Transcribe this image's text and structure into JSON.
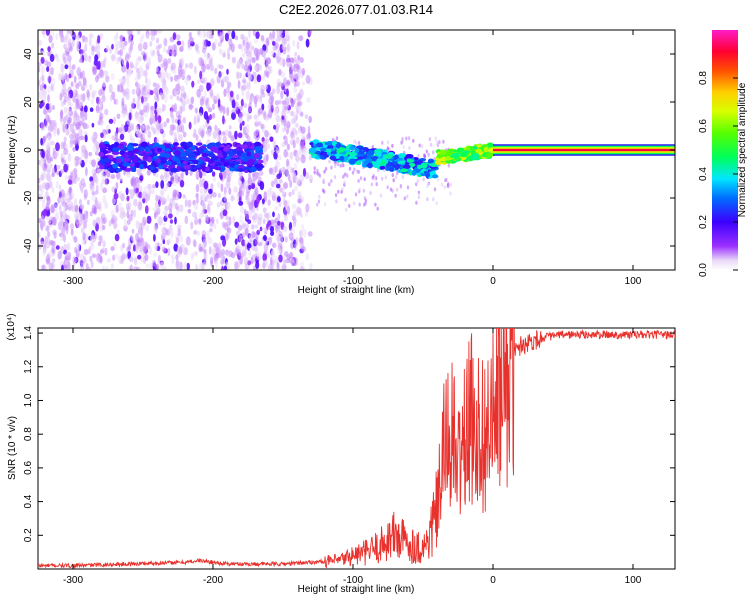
{
  "page": {
    "title": "C2E2.2026.077.01.03.R14"
  },
  "colors": {
    "snr_line": "#e8312c",
    "axis": "#000000",
    "background": "#ffffff"
  },
  "chart_data": [
    {
      "type": "heatmap",
      "title": "C2E2.2026.077.01.03.R14",
      "xlabel": "Height of straight line (km)",
      "ylabel": "Frequency (Hz)",
      "xlim": [
        -325,
        130
      ],
      "ylim": [
        -50,
        50
      ],
      "x_ticks": [
        -300,
        -200,
        -100,
        0,
        100
      ],
      "y_ticks": [
        -40,
        -20,
        0,
        20,
        40
      ],
      "colorbar": {
        "label": "Normalized spectral amplitude",
        "range": [
          0,
          1
        ],
        "ticks": [
          0.0,
          0.2,
          0.4,
          0.6,
          0.8
        ]
      },
      "features": [
        {
          "name": "scatter noise",
          "x_range": [
            -325,
            -130
          ],
          "freq_range": [
            -50,
            50
          ],
          "amplitude": 0.12
        },
        {
          "name": "weak carrier",
          "x_range": [
            -280,
            -165
          ],
          "freq_center": -3,
          "amplitude": 0.3
        },
        {
          "name": "drifting carrier",
          "x_range": [
            -130,
            -40
          ],
          "freq_center": [
            1,
            -8
          ],
          "amplitude": 0.45
        },
        {
          "name": "locking carrier",
          "x_range": [
            -40,
            0
          ],
          "freq_center": [
            -3,
            0
          ],
          "amplitude": 0.7
        },
        {
          "name": "steady carrier",
          "x_range": [
            0,
            130
          ],
          "freq_center": 0,
          "amplitude": 1.0
        }
      ]
    },
    {
      "type": "line",
      "xlabel": "Height of straight line (km)",
      "ylabel": "SNR (10 * v/v)",
      "y_multiplier": "(x10⁴)",
      "xlim": [
        -325,
        130
      ],
      "ylim": [
        0,
        1.43
      ],
      "x_ticks": [
        -300,
        -200,
        -100,
        0,
        100
      ],
      "y_ticks": [
        0.2,
        0.4,
        0.6,
        0.8,
        1.0,
        1.2,
        1.4
      ],
      "series": [
        {
          "name": "SNR",
          "x": [
            -325,
            -300,
            -260,
            -220,
            -210,
            -190,
            -150,
            -130,
            -110,
            -100,
            -90,
            -80,
            -75,
            -70,
            -60,
            -50,
            -45,
            -40,
            -35,
            -30,
            -25,
            -20,
            -15,
            -10,
            -5,
            0,
            5,
            10,
            15,
            20,
            30,
            40,
            50,
            60,
            80,
            100,
            130
          ],
          "y": [
            0.02,
            0.02,
            0.03,
            0.04,
            0.05,
            0.03,
            0.03,
            0.04,
            0.05,
            0.08,
            0.1,
            0.14,
            0.18,
            0.2,
            0.15,
            0.12,
            0.2,
            0.35,
            0.7,
            0.82,
            0.62,
            0.78,
            0.9,
            0.82,
            0.8,
            0.9,
            1.02,
            1.18,
            1.28,
            1.33,
            1.36,
            1.38,
            1.39,
            1.39,
            1.39,
            1.39,
            1.39
          ]
        }
      ]
    }
  ]
}
